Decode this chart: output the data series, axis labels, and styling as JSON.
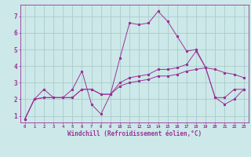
{
  "xlabel": "Windchill (Refroidissement éolien,°C)",
  "bg_color": "#cce8e8",
  "grid_color": "#aacccc",
  "line_color": "#993399",
  "xlim": [
    -0.5,
    23.5
  ],
  "ylim": [
    0.6,
    7.7
  ],
  "xticks": [
    0,
    1,
    2,
    3,
    4,
    5,
    6,
    7,
    8,
    9,
    10,
    11,
    12,
    13,
    14,
    15,
    16,
    17,
    18,
    19,
    20,
    21,
    22,
    23
  ],
  "yticks": [
    1,
    2,
    3,
    4,
    5,
    6,
    7
  ],
  "series1_x": [
    0,
    1,
    2,
    3,
    4,
    5,
    6,
    7,
    8,
    9,
    10,
    11,
    12,
    13,
    14,
    15,
    16,
    17,
    18,
    19,
    20,
    21,
    22,
    23
  ],
  "series1_y": [
    0.8,
    2.0,
    2.6,
    2.1,
    2.1,
    2.6,
    3.7,
    1.7,
    1.1,
    2.3,
    4.5,
    6.6,
    6.5,
    6.6,
    7.3,
    6.7,
    5.8,
    4.9,
    5.0,
    3.9,
    2.1,
    1.7,
    2.0,
    2.6
  ],
  "series2_x": [
    0,
    1,
    2,
    3,
    4,
    5,
    6,
    7,
    8,
    9,
    10,
    11,
    12,
    13,
    14,
    15,
    16,
    17,
    18,
    19,
    20,
    21,
    22,
    23
  ],
  "series2_y": [
    0.8,
    2.0,
    2.1,
    2.1,
    2.1,
    2.1,
    2.6,
    2.6,
    2.3,
    2.3,
    3.0,
    3.3,
    3.4,
    3.5,
    3.8,
    3.8,
    3.9,
    4.1,
    4.9,
    3.9,
    2.1,
    2.1,
    2.6,
    2.6
  ],
  "series3_x": [
    0,
    1,
    2,
    3,
    4,
    5,
    6,
    7,
    8,
    9,
    10,
    11,
    12,
    13,
    14,
    15,
    16,
    17,
    18,
    19,
    20,
    21,
    22,
    23
  ],
  "series3_y": [
    0.8,
    2.0,
    2.1,
    2.1,
    2.1,
    2.1,
    2.6,
    2.6,
    2.3,
    2.3,
    2.8,
    3.0,
    3.1,
    3.2,
    3.4,
    3.4,
    3.5,
    3.7,
    3.8,
    3.9,
    3.8,
    3.6,
    3.5,
    3.3
  ]
}
